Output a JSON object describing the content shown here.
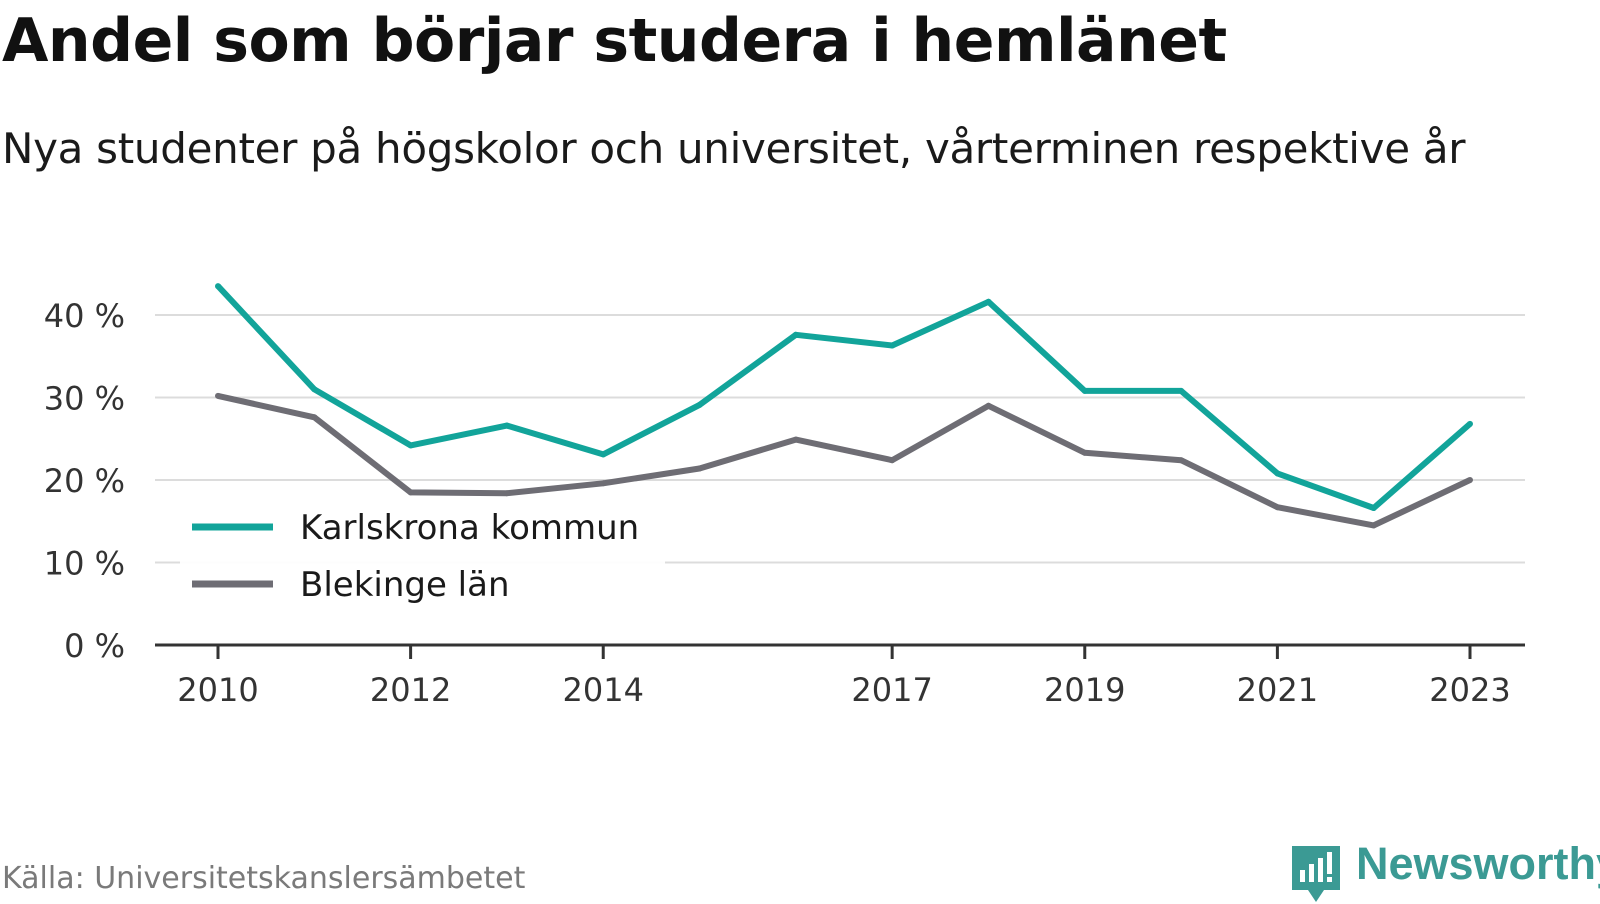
{
  "header": {
    "title": "Andel som börjar studera i hemlänet",
    "subtitle": "Nya studenter på högskolor och universitet, vårterminen respektive år"
  },
  "footer": {
    "source": "Källa: Universitetskanslersämbetet",
    "brand": "Newsworthy"
  },
  "colors": {
    "karlskrona": "#12a49a",
    "blekinge": "#6e6d74",
    "grid": "#dcdcdc",
    "axis": "#333333",
    "brand": "#3b9a94"
  },
  "chart_data": {
    "type": "line",
    "x": [
      2010,
      2011,
      2012,
      2013,
      2014,
      2015,
      2016,
      2017,
      2018,
      2019,
      2020,
      2021,
      2022,
      2023
    ],
    "xticks": [
      2010,
      2012,
      2014,
      2017,
      2019,
      2021,
      2023
    ],
    "xtick_labels": [
      "2010",
      "2012",
      "2014",
      "2017",
      "2019",
      "2021",
      "2023"
    ],
    "yticks": [
      0,
      10,
      20,
      30,
      40
    ],
    "ytick_labels": [
      "0 %",
      "10 %",
      "20 %",
      "30 %",
      "40 %"
    ],
    "ylim": [
      0,
      44
    ],
    "grid": true,
    "legend_position": "bottom-left",
    "series": [
      {
        "name": "Karlskrona kommun",
        "color": "#12a49a",
        "values": [
          43.5,
          31.0,
          24.2,
          26.6,
          23.1,
          29.1,
          37.6,
          36.3,
          41.6,
          30.8,
          30.8,
          20.8,
          16.6,
          26.8
        ]
      },
      {
        "name": "Blekinge län",
        "color": "#6e6d74",
        "values": [
          30.2,
          27.6,
          18.5,
          18.4,
          19.6,
          21.4,
          24.9,
          22.4,
          29.0,
          23.3,
          22.4,
          16.7,
          14.5,
          20.0
        ]
      }
    ]
  }
}
